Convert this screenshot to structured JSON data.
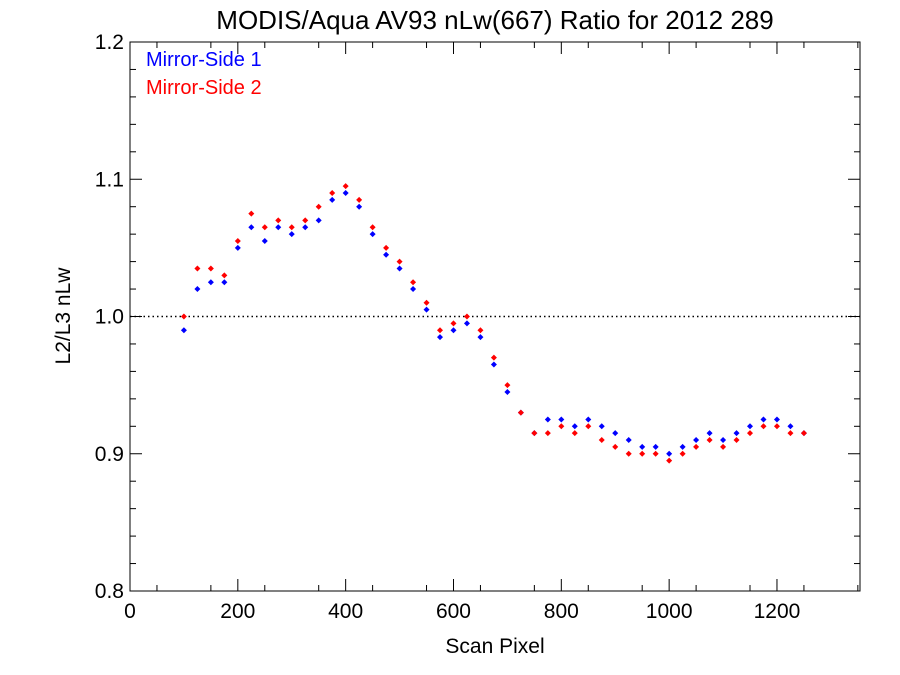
{
  "chart_data": {
    "type": "scatter",
    "title": "MODIS/Aqua AV93 nLw(667) Ratio for 2012 289",
    "xlabel": "Scan Pixel",
    "ylabel": "L2/L3 nLw",
    "xlim": [
      0,
      1354
    ],
    "ylim": [
      0.8,
      1.2
    ],
    "x_ticks": [
      0,
      200,
      400,
      600,
      800,
      1000,
      1200
    ],
    "x_tick_labels": [
      "0",
      "200",
      "400",
      "600",
      "800",
      "1000",
      "1200"
    ],
    "y_ticks": [
      0.8,
      0.9,
      1.0,
      1.1,
      1.2
    ],
    "y_tick_labels": [
      "0.8",
      "0.9",
      "1.0",
      "1.1",
      "1.2"
    ],
    "reference_line": {
      "y": 1.0,
      "style": "dotted"
    },
    "legend_position": "top-left",
    "series": [
      {
        "name": "Mirror-Side 1",
        "color": "#0000ff",
        "x": [
          100,
          125,
          150,
          175,
          200,
          225,
          250,
          275,
          300,
          325,
          350,
          375,
          400,
          425,
          450,
          475,
          500,
          525,
          550,
          575,
          600,
          625,
          650,
          675,
          700,
          725,
          750,
          775,
          800,
          825,
          850,
          875,
          900,
          925,
          950,
          975,
          1000,
          1025,
          1050,
          1075,
          1100,
          1125,
          1150,
          1175,
          1200,
          1225,
          1250
        ],
        "y": [
          0.99,
          1.02,
          1.025,
          1.025,
          1.05,
          1.065,
          1.055,
          1.065,
          1.06,
          1.065,
          1.07,
          1.085,
          1.09,
          1.08,
          1.06,
          1.045,
          1.035,
          1.02,
          1.005,
          0.985,
          0.99,
          0.995,
          0.985,
          0.965,
          0.945,
          0.93,
          0.915,
          0.925,
          0.925,
          0.92,
          0.925,
          0.92,
          0.915,
          0.91,
          0.905,
          0.905,
          0.9,
          0.905,
          0.91,
          0.915,
          0.91,
          0.915,
          0.92,
          0.925,
          0.925,
          0.92,
          0.915
        ]
      },
      {
        "name": "Mirror-Side 2",
        "color": "#ff0000",
        "x": [
          100,
          125,
          150,
          175,
          200,
          225,
          250,
          275,
          300,
          325,
          350,
          375,
          400,
          425,
          450,
          475,
          500,
          525,
          550,
          575,
          600,
          625,
          650,
          675,
          700,
          725,
          750,
          775,
          800,
          825,
          850,
          875,
          900,
          925,
          950,
          975,
          1000,
          1025,
          1050,
          1075,
          1100,
          1125,
          1150,
          1175,
          1200,
          1225,
          1250
        ],
        "y": [
          1.0,
          1.035,
          1.035,
          1.03,
          1.055,
          1.075,
          1.065,
          1.07,
          1.065,
          1.07,
          1.08,
          1.09,
          1.095,
          1.085,
          1.065,
          1.05,
          1.04,
          1.025,
          1.01,
          0.99,
          0.995,
          1.0,
          0.99,
          0.97,
          0.95,
          0.93,
          0.915,
          0.915,
          0.92,
          0.915,
          0.92,
          0.91,
          0.905,
          0.9,
          0.9,
          0.9,
          0.895,
          0.9,
          0.905,
          0.91,
          0.905,
          0.91,
          0.915,
          0.92,
          0.92,
          0.915,
          0.915
        ]
      }
    ]
  }
}
